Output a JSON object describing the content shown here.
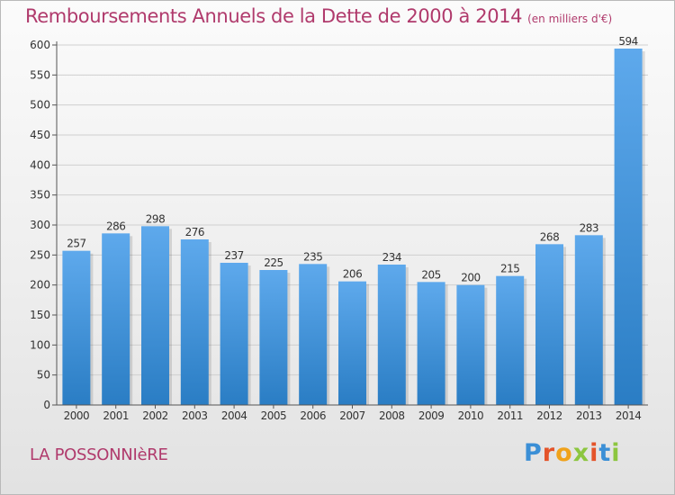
{
  "header": {
    "title": "Remboursements Annuels de la Dette de 2000 à 2014",
    "unit": "(en milliers d'€)"
  },
  "footer": {
    "commune": "LA POSSONNIèRE",
    "logo_text": "Proxiti"
  },
  "colors": {
    "bar_top": "#5ea9ec",
    "bar_bottom": "#2a7dc4",
    "title": "#b03a6c"
  },
  "chart_data": {
    "type": "bar",
    "title": "Remboursements Annuels de la Dette de 2000 à 2014",
    "xlabel": "",
    "ylabel": "",
    "categories": [
      "2000",
      "2001",
      "2002",
      "2003",
      "2004",
      "2005",
      "2006",
      "2007",
      "2008",
      "2009",
      "2010",
      "2011",
      "2012",
      "2013",
      "2014"
    ],
    "values": [
      257,
      286,
      298,
      276,
      237,
      225,
      235,
      206,
      234,
      205,
      200,
      215,
      268,
      283,
      594
    ],
    "ylim": [
      0,
      600
    ],
    "yticks": [
      0,
      50,
      100,
      150,
      200,
      250,
      300,
      350,
      400,
      450,
      500,
      550,
      600
    ],
    "grid": true
  }
}
